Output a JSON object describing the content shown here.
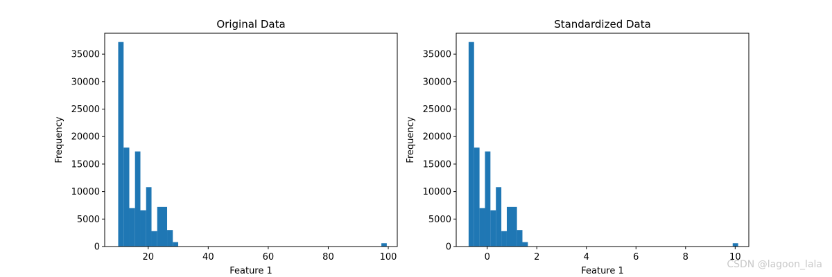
{
  "watermark": "CSDN @lagoon_lala",
  "chart_data": [
    {
      "type": "bar",
      "title": "Original Data",
      "xlabel": "Feature 1",
      "ylabel": "Frequency",
      "xlim": [
        5.5,
        103
      ],
      "ylim": [
        0,
        38800
      ],
      "xticks": [
        20,
        40,
        60,
        80,
        100
      ],
      "xtick_labels": [
        "20",
        "40",
        "60",
        "80",
        "100"
      ],
      "yticks": [
        0,
        5000,
        10000,
        15000,
        20000,
        25000,
        30000,
        35000
      ],
      "ytick_labels": [
        "0",
        "5000",
        "10000",
        "15000",
        "20000",
        "25000",
        "30000",
        "35000"
      ],
      "color": "#1f77b4",
      "bins": [
        {
          "x0": 10.0,
          "x1": 11.8,
          "value": 37200
        },
        {
          "x0": 11.8,
          "x1": 13.7,
          "value": 18000
        },
        {
          "x0": 13.7,
          "x1": 15.6,
          "value": 7000
        },
        {
          "x0": 15.6,
          "x1": 17.4,
          "value": 17300
        },
        {
          "x0": 17.4,
          "x1": 19.3,
          "value": 6600
        },
        {
          "x0": 19.3,
          "x1": 21.1,
          "value": 10800
        },
        {
          "x0": 21.1,
          "x1": 23.0,
          "value": 2800
        },
        {
          "x0": 23.0,
          "x1": 26.3,
          "value": 7200
        },
        {
          "x0": 26.3,
          "x1": 28.2,
          "value": 3000
        },
        {
          "x0": 28.2,
          "x1": 30.0,
          "value": 800
        },
        {
          "x0": 97.7,
          "x1": 99.5,
          "value": 600
        }
      ]
    },
    {
      "type": "bar",
      "title": "Standardized Data",
      "xlabel": "Feature 1",
      "ylabel": "Frequency",
      "xlim": [
        -1.25,
        10.55
      ],
      "ylim": [
        0,
        38800
      ],
      "xticks": [
        0,
        2,
        4,
        6,
        8,
        10
      ],
      "xtick_labels": [
        "0",
        "2",
        "4",
        "6",
        "8",
        "10"
      ],
      "yticks": [
        0,
        5000,
        10000,
        15000,
        20000,
        25000,
        30000,
        35000
      ],
      "ytick_labels": [
        "0",
        "5000",
        "10000",
        "15000",
        "20000",
        "25000",
        "30000",
        "35000"
      ],
      "color": "#1f77b4",
      "bins": [
        {
          "x0": -0.75,
          "x1": -0.53,
          "value": 37200
        },
        {
          "x0": -0.53,
          "x1": -0.31,
          "value": 18000
        },
        {
          "x0": -0.31,
          "x1": -0.09,
          "value": 7000
        },
        {
          "x0": -0.09,
          "x1": 0.13,
          "value": 17300
        },
        {
          "x0": 0.13,
          "x1": 0.35,
          "value": 6600
        },
        {
          "x0": 0.35,
          "x1": 0.57,
          "value": 10800
        },
        {
          "x0": 0.57,
          "x1": 0.79,
          "value": 2800
        },
        {
          "x0": 0.79,
          "x1": 1.2,
          "value": 7200
        },
        {
          "x0": 1.2,
          "x1": 1.42,
          "value": 3000
        },
        {
          "x0": 1.42,
          "x1": 1.64,
          "value": 800
        },
        {
          "x0": 9.9,
          "x1": 10.12,
          "value": 600
        }
      ]
    }
  ]
}
